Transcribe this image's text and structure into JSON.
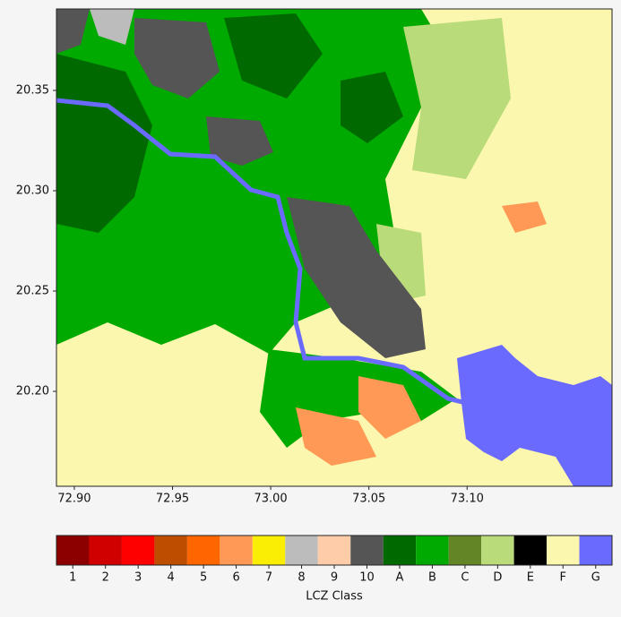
{
  "chart_data": {
    "type": "raster-map",
    "xlim": [
      72.8909,
      73.1738
    ],
    "ylim": [
      20.1527,
      20.3906
    ],
    "xticks": [
      {
        "value": 72.9,
        "label": "72.90"
      },
      72.95,
      {
        "value": 73.0,
        "label": "73.00"
      },
      73.05,
      {
        "value": 73.1,
        "label": "73.10"
      }
    ],
    "yticks": [
      {
        "value": 20.2,
        "label": "20.20"
      },
      20.25,
      {
        "value": 20.3,
        "label": "20.30"
      },
      20.35
    ],
    "legend": {
      "title": "LCZ Class",
      "categories": [
        "1",
        "2",
        "3",
        "4",
        "5",
        "6",
        "7",
        "8",
        "9",
        "10",
        "A",
        "B",
        "C",
        "D",
        "E",
        "F",
        "G"
      ],
      "colors": [
        "#8c0000",
        "#d10000",
        "#ff0000",
        "#bf4d00",
        "#ff6600",
        "#ff9955",
        "#faee05",
        "#bcbcbc",
        "#ffccaa",
        "#555555",
        "#006a00",
        "#00aa00",
        "#648525",
        "#b9db79",
        "#000000",
        "#fbf7ae",
        "#6a6aff"
      ]
    }
  }
}
